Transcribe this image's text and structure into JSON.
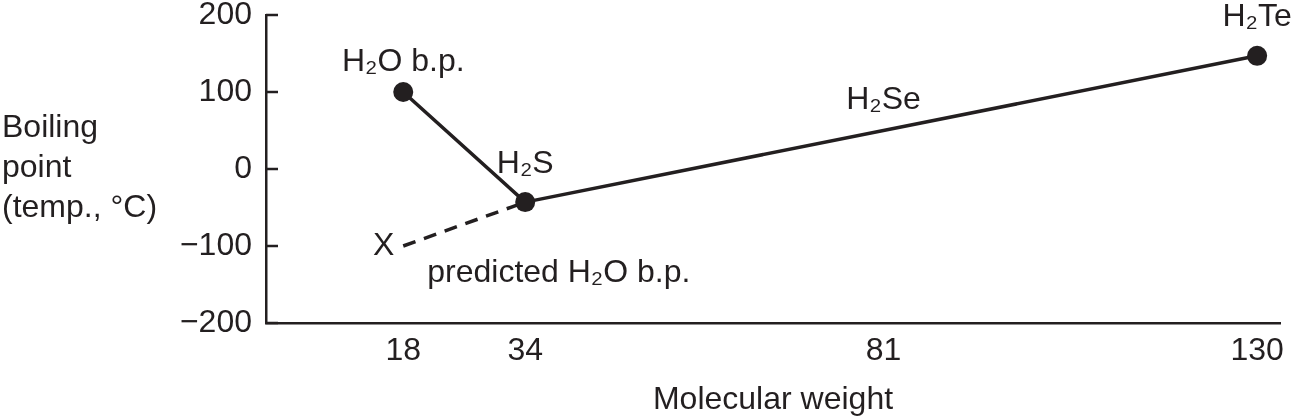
{
  "chart_data": {
    "type": "line",
    "xlabel": "Molecular weight",
    "ylabel": "Boiling point (temp., °C)",
    "xlim": [
      0,
      133
    ],
    "xticks": [
      18,
      34,
      81,
      130
    ],
    "ylim": [
      -200,
      200
    ],
    "yticks": [
      -200,
      -100,
      0,
      100,
      200
    ],
    "marker": "circle",
    "line_style": "solid",
    "series": [
      {
        "color": "#231f20",
        "x": [
          18,
          34,
          130
        ],
        "values": [
          100,
          -43,
          147
        ]
      },
      {
        "color": "#231f20",
        "x": [
          18,
          34
        ],
        "values": [
          -100,
          -43
        ],
        "line_style": "dashed",
        "marker": "none"
      }
    ],
    "annotations": [
      {
        "text": "H₂O b.p.",
        "x": 18,
        "y": 100
      },
      {
        "text": "H₂S",
        "x": 34,
        "y": -43
      },
      {
        "text": "H₂Se",
        "x": 81,
        "y": 50
      },
      {
        "text": "H₂Te",
        "x": 130,
        "y": 147
      },
      {
        "text": "X",
        "x": 18,
        "y": -100
      },
      {
        "text": "predicted H₂O b.p.",
        "x": 18,
        "y": -100
      }
    ]
  }
}
